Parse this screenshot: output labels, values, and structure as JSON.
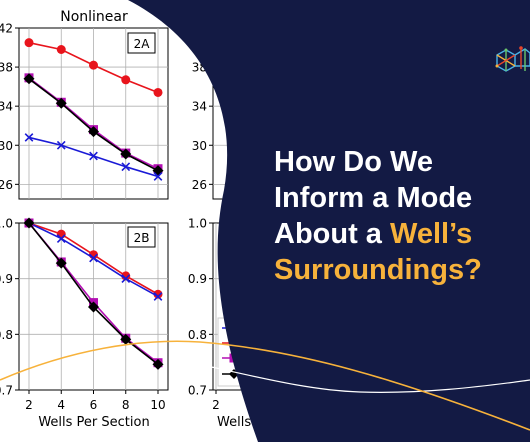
{
  "headline": {
    "line1": "How Do We",
    "line2": "Inform a Mode",
    "line3a": "About a ",
    "line3b": "Well’s",
    "line4": "Surroundings?"
  },
  "colors": {
    "navy": "#131a44",
    "accent": "#f7b23b",
    "red": "#e8141c",
    "blue": "#1a1ad6",
    "magenta": "#b30fb3",
    "black": "#000000"
  },
  "logo_icon": "hexagon-network-icon",
  "chart_data": [
    {
      "type": "line",
      "panel_label": "2A",
      "title": "Nonlinear",
      "x": [
        2,
        4,
        6,
        8,
        10
      ],
      "ylim": [
        24.5,
        42
      ],
      "yticks": [
        "26",
        "30",
        "34",
        "38",
        "42"
      ],
      "series": [
        {
          "color": "#e8141c",
          "marker": "circle",
          "values": [
            40.5,
            39.8,
            38.2,
            36.7,
            35.4
          ]
        },
        {
          "color": "#b30fb3",
          "marker": "square",
          "values": [
            36.9,
            34.4,
            31.6,
            29.2,
            27.6
          ]
        },
        {
          "color": "#000000",
          "marker": "diamond",
          "values": [
            36.8,
            34.3,
            31.4,
            29.1,
            27.4
          ]
        },
        {
          "color": "#1a1ad6",
          "marker": "x",
          "values": [
            30.8,
            30.0,
            28.9,
            27.8,
            26.8
          ]
        }
      ]
    },
    {
      "type": "line",
      "panel_label": "2B",
      "x": [
        2,
        4,
        6,
        8,
        10
      ],
      "xlabel": "Wells Per Section",
      "xticks": [
        "2",
        "4",
        "6",
        "8",
        "10"
      ],
      "ylim": [
        0.7,
        1.0
      ],
      "yticks": [
        "0.7",
        "0.8",
        "0.9",
        "1.0"
      ],
      "ytick_labels": [
        "0.7",
        "0.8",
        "0.9",
        "1.0"
      ],
      "series": [
        {
          "color": "#e8141c",
          "marker": "circle",
          "values": [
            1.0,
            0.98,
            0.943,
            0.905,
            0.872
          ]
        },
        {
          "color": "#1a1ad6",
          "marker": "x",
          "values": [
            1.0,
            0.972,
            0.937,
            0.9,
            0.868
          ]
        },
        {
          "color": "#b30fb3",
          "marker": "square",
          "values": [
            1.0,
            0.93,
            0.857,
            0.793,
            0.749
          ]
        },
        {
          "color": "#000000",
          "marker": "diamond",
          "values": [
            1.0,
            0.928,
            0.849,
            0.791,
            0.746
          ]
        }
      ]
    },
    {
      "type": "line",
      "panel_label": "partial-top",
      "ylim": [
        24.5,
        42
      ],
      "yticks": [
        "26",
        "30",
        "34",
        "38"
      ]
    },
    {
      "type": "line",
      "panel_label": "partial-bottom",
      "ylim": [
        0.7,
        1.0
      ],
      "yticks": [
        "0.7",
        "0.8",
        "0.9",
        "1.0"
      ],
      "xticks": [
        "2",
        "4"
      ],
      "xlabel_fragment": "Wells Per Se",
      "legend_text_fragment": "W"
    }
  ]
}
